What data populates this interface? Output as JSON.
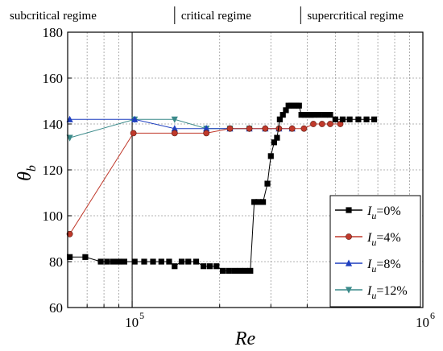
{
  "chart_data": {
    "type": "line",
    "x_scale": "log",
    "xlim": [
      60000,
      1000000
    ],
    "ylim": [
      60,
      180
    ],
    "yticks": [
      60,
      80,
      100,
      120,
      140,
      160,
      180
    ],
    "xtick_labels": [
      {
        "value": 100000,
        "base": "10",
        "exp": "5"
      },
      {
        "value": 1000000,
        "base": "10",
        "exp": "6"
      }
    ],
    "xlabel": "Re",
    "ylabel": {
      "main": "θ",
      "sub": "b"
    },
    "grid": true,
    "legend_position": "lower-right",
    "regimes": [
      {
        "label": "subcritical regime",
        "from": 60000,
        "to": 140000
      },
      {
        "label": "critical regime",
        "from": 140000,
        "to": 380000
      },
      {
        "label": "supercritical regime",
        "from": 380000,
        "to": 1000000
      }
    ],
    "series": [
      {
        "name": "=0%",
        "legend_var": "I",
        "legend_sub": "u",
        "color": "#000000",
        "marker": "square",
        "points": [
          [
            61000,
            82
          ],
          [
            69000,
            82
          ],
          [
            78000,
            80
          ],
          [
            82000,
            80
          ],
          [
            86000,
            80
          ],
          [
            90000,
            80
          ],
          [
            94000,
            80
          ],
          [
            102000,
            80
          ],
          [
            110000,
            80
          ],
          [
            118000,
            80
          ],
          [
            126000,
            80
          ],
          [
            134000,
            80
          ],
          [
            140000,
            78
          ],
          [
            148000,
            80
          ],
          [
            156000,
            80
          ],
          [
            166000,
            80
          ],
          [
            176000,
            78
          ],
          [
            185000,
            78
          ],
          [
            195000,
            78
          ],
          [
            205000,
            76
          ],
          [
            215000,
            76
          ],
          [
            225000,
            76
          ],
          [
            235000,
            76
          ],
          [
            245000,
            76
          ],
          [
            255000,
            76
          ],
          [
            263000,
            106
          ],
          [
            272000,
            106
          ],
          [
            282000,
            106
          ],
          [
            292000,
            114
          ],
          [
            300000,
            126
          ],
          [
            308000,
            132
          ],
          [
            315000,
            134
          ],
          [
            322000,
            142
          ],
          [
            330000,
            144
          ],
          [
            338000,
            146
          ],
          [
            345000,
            148
          ],
          [
            352000,
            148
          ],
          [
            360000,
            148
          ],
          [
            368000,
            148
          ],
          [
            375000,
            148
          ],
          [
            382000,
            144
          ],
          [
            392000,
            144
          ],
          [
            402000,
            144
          ],
          [
            412000,
            144
          ],
          [
            422000,
            144
          ],
          [
            440000,
            144
          ],
          [
            460000,
            144
          ],
          [
            480000,
            144
          ],
          [
            500000,
            142
          ],
          [
            530000,
            142
          ],
          [
            560000,
            142
          ],
          [
            600000,
            142
          ],
          [
            640000,
            142
          ],
          [
            680000,
            142
          ]
        ]
      },
      {
        "name": "=4%",
        "legend_var": "I",
        "legend_sub": "u",
        "color": "#c0392b",
        "marker": "circle",
        "points": [
          [
            61000,
            92
          ],
          [
            101000,
            136
          ],
          [
            140000,
            136
          ],
          [
            180000,
            136
          ],
          [
            217000,
            138
          ],
          [
            253000,
            138
          ],
          [
            287000,
            138
          ],
          [
            320000,
            138
          ],
          [
            355000,
            138
          ],
          [
            390000,
            138
          ],
          [
            420000,
            140
          ],
          [
            450000,
            140
          ],
          [
            480000,
            140
          ],
          [
            520000,
            140
          ]
        ]
      },
      {
        "name": "=8%",
        "legend_var": "I",
        "legend_sub": "u",
        "color": "#1f3fbf",
        "marker": "triangle-up",
        "points": [
          [
            61000,
            142
          ],
          [
            102000,
            142
          ],
          [
            140000,
            138
          ],
          [
            180000,
            138
          ],
          [
            217000,
            138
          ],
          [
            253000,
            138
          ],
          [
            287000,
            138
          ],
          [
            320000,
            138
          ],
          [
            355000,
            138
          ]
        ]
      },
      {
        "name": "=12%",
        "legend_var": "I",
        "legend_sub": "u",
        "color": "#3b8a8a",
        "marker": "triangle-down",
        "points": [
          [
            61000,
            134
          ],
          [
            102000,
            142
          ],
          [
            140000,
            142
          ],
          [
            180000,
            138
          ],
          [
            217000,
            138
          ],
          [
            253000,
            138
          ]
        ]
      }
    ]
  }
}
